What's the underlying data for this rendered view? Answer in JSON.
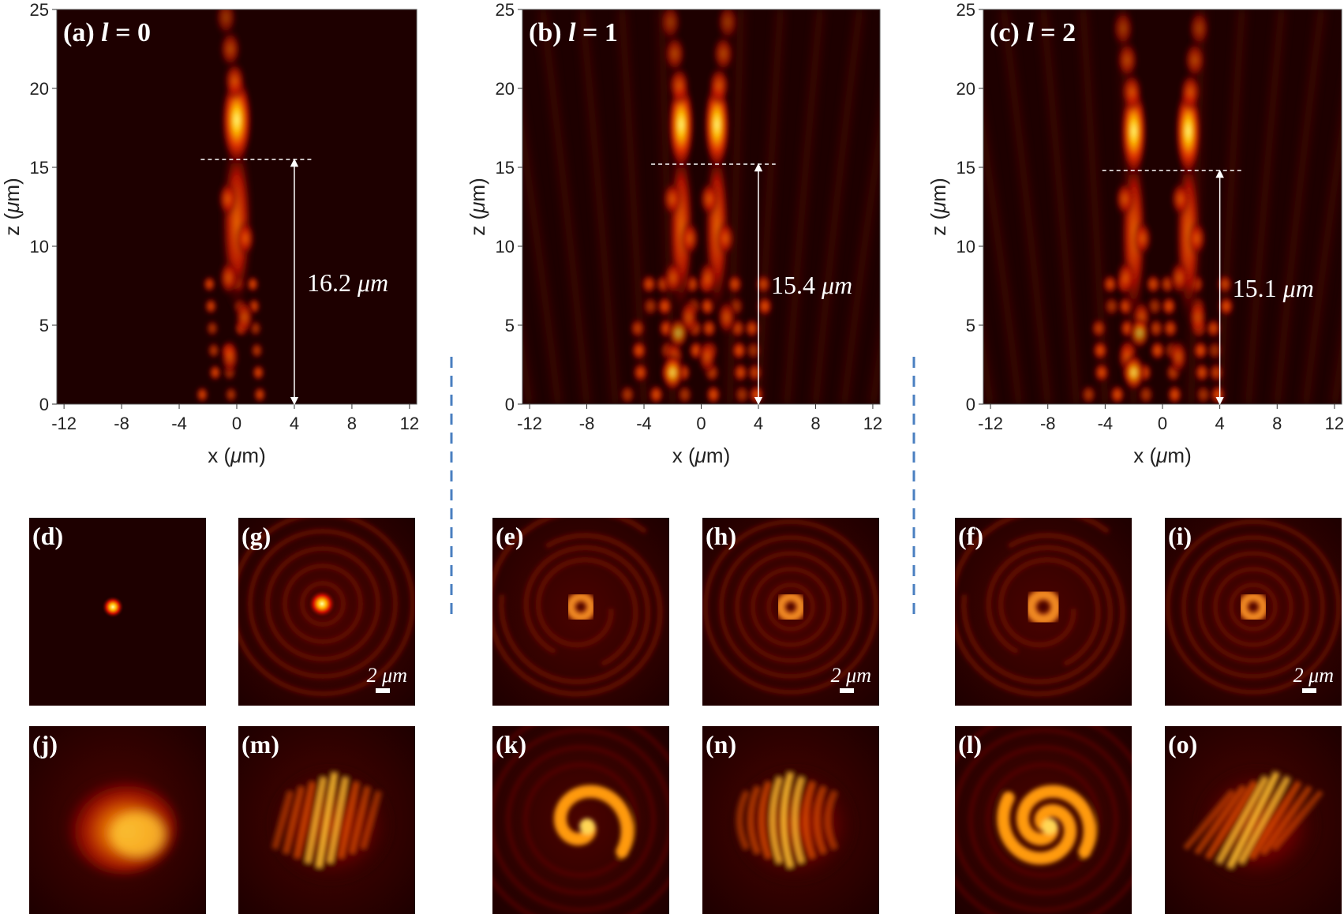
{
  "colors": {
    "background": "#1a0000",
    "hot_low": "#3a0000",
    "hot_mid": "#d21a00",
    "hot_high": "#ff9a00",
    "hot_peak": "#ffff80",
    "divider": "#4a7fc0",
    "annotation": "#ffffff"
  },
  "chart_data": [
    {
      "type": "heatmap",
      "panel": "(a)",
      "label_prefix": "(a)",
      "label_var": "l",
      "label_value": "= 0",
      "xlabel_main": "x (",
      "xlabel_mu": "μ",
      "xlabel_unit": "m)",
      "ylabel_main": "z (",
      "ylabel_mu": "μ",
      "ylabel_unit": "m)",
      "xlim": [
        -12.5,
        12.5
      ],
      "ylim": [
        0,
        25
      ],
      "xticks": [
        "-12",
        "-8",
        "-4",
        "0",
        "4",
        "8",
        "12"
      ],
      "yticks": [
        "0",
        "5",
        "10",
        "15",
        "20",
        "25"
      ],
      "focal_z": 15.5,
      "focal_line_x": [
        -2.5,
        5.2
      ],
      "arrow_x": 4,
      "measurement_value": "16.2",
      "measurement_unit": "μm",
      "lobes_x": [
        0
      ]
    },
    {
      "type": "heatmap",
      "panel": "(b)",
      "label_prefix": "(b)",
      "label_var": "l",
      "label_value": "= 1",
      "xlabel_main": "x (",
      "xlabel_mu": "μ",
      "xlabel_unit": "m)",
      "ylabel_main": "z (",
      "ylabel_mu": "μ",
      "ylabel_unit": "m)",
      "xlim": [
        -12.5,
        12.5
      ],
      "ylim": [
        0,
        25
      ],
      "xticks": [
        "-12",
        "-8",
        "-4",
        "0",
        "4",
        "8",
        "12"
      ],
      "yticks": [
        "0",
        "5",
        "10",
        "15",
        "20",
        "25"
      ],
      "focal_z": 15.2,
      "focal_line_x": [
        -3.5,
        5.2
      ],
      "arrow_x": 4,
      "measurement_value": "15.4",
      "measurement_unit": "μm",
      "lobes_x": [
        -1.4,
        1.1
      ]
    },
    {
      "type": "heatmap",
      "panel": "(c)",
      "label_prefix": "(c)",
      "label_var": "l",
      "label_value": "= 2",
      "xlabel_main": "x (",
      "xlabel_mu": "μ",
      "xlabel_unit": "m)",
      "ylabel_main": "z (",
      "ylabel_mu": "μ",
      "ylabel_unit": "m)",
      "xlim": [
        -12.5,
        12.5
      ],
      "ylim": [
        0,
        25
      ],
      "xticks": [
        "-12",
        "-8",
        "-4",
        "0",
        "4",
        "8",
        "12"
      ],
      "yticks": [
        "0",
        "5",
        "10",
        "15",
        "20",
        "25"
      ],
      "focal_z": 14.8,
      "focal_line_x": [
        -4.2,
        5.5
      ],
      "arrow_x": 4,
      "measurement_value": "15.1",
      "measurement_unit": "μm",
      "lobes_x": [
        -2.0,
        1.8
      ]
    }
  ],
  "small_panels": [
    {
      "label": "(d)",
      "pattern": "spot",
      "scale_bar": false
    },
    {
      "label": "(g)",
      "pattern": "spot-rings",
      "scale_bar": true
    },
    {
      "label": "(e)",
      "pattern": "donut-small",
      "scale_bar": false
    },
    {
      "label": "(h)",
      "pattern": "donut-rings",
      "scale_bar": true
    },
    {
      "label": "(f)",
      "pattern": "donut-large",
      "scale_bar": false
    },
    {
      "label": "(i)",
      "pattern": "donut-rings",
      "scale_bar": true
    },
    {
      "label": "(j)",
      "pattern": "blob",
      "scale_bar": false
    },
    {
      "label": "(m)",
      "pattern": "fringes",
      "scale_bar": false
    },
    {
      "label": "(k)",
      "pattern": "spiral1",
      "scale_bar": false
    },
    {
      "label": "(n)",
      "pattern": "fringes-arc",
      "scale_bar": false
    },
    {
      "label": "(l)",
      "pattern": "spiral2",
      "scale_bar": false
    },
    {
      "label": "(o)",
      "pattern": "fringes-diag",
      "scale_bar": false
    }
  ],
  "scale_bar_text": "2 μm"
}
